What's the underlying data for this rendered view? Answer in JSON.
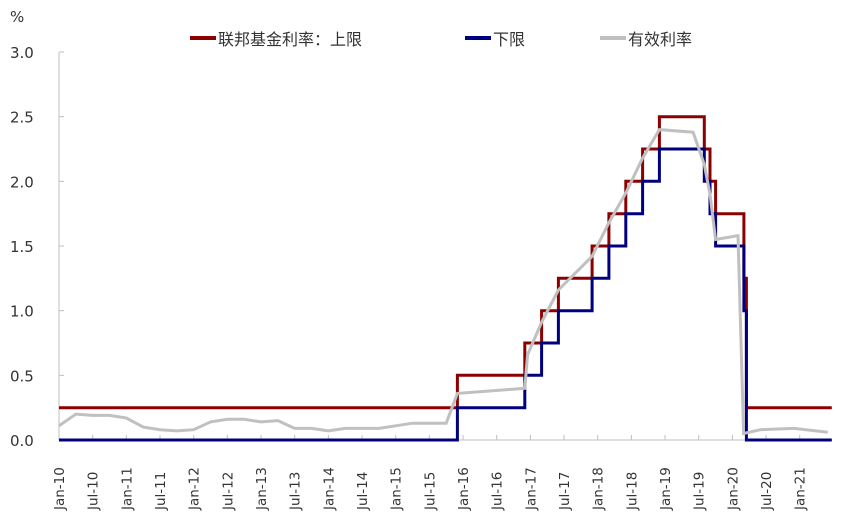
{
  "chart_data": {
    "type": "line",
    "title": "",
    "ylabel": "%",
    "xlabel": "",
    "ylim": [
      0.0,
      3.0
    ],
    "yticks": [
      "0.0",
      "0.5",
      "1.0",
      "1.5",
      "2.0",
      "2.5",
      "3.0"
    ],
    "xticks": [
      "Jan-10",
      "Jul-10",
      "Jan-11",
      "Jul-11",
      "Jan-12",
      "Jul-12",
      "Jan-13",
      "Jul-13",
      "Jan-14",
      "Jul-14",
      "Jan-15",
      "Jul-15",
      "Jan-16",
      "Jul-16",
      "Jan-17",
      "Jul-17",
      "Jan-18",
      "Jul-18",
      "Jan-19",
      "Jul-19",
      "Jan-20",
      "Jul-20",
      "Jan-21"
    ],
    "x_range": [
      "Jan-10",
      "Jun-21"
    ],
    "grid": false,
    "legend_position": "top",
    "series": [
      {
        "name": "联邦基金利率：上限",
        "color": "#8B0000",
        "step": true,
        "points": [
          [
            "2010-01",
            0.25
          ],
          [
            "2015-12",
            0.5
          ],
          [
            "2016-12",
            0.75
          ],
          [
            "2017-03",
            1.0
          ],
          [
            "2017-06",
            1.25
          ],
          [
            "2017-12",
            1.5
          ],
          [
            "2018-03",
            1.75
          ],
          [
            "2018-06",
            2.0
          ],
          [
            "2018-09",
            2.25
          ],
          [
            "2018-12",
            2.5
          ],
          [
            "2019-08",
            2.25
          ],
          [
            "2019-09",
            2.0
          ],
          [
            "2019-10",
            1.75
          ],
          [
            "2020-03a",
            1.25
          ],
          [
            "2020-03b",
            0.25
          ],
          [
            "2021-06",
            0.25
          ]
        ]
      },
      {
        "name": "下限",
        "color": "#00007F",
        "step": true,
        "points": [
          [
            "2010-01",
            0.0
          ],
          [
            "2015-12",
            0.25
          ],
          [
            "2016-12",
            0.5
          ],
          [
            "2017-03",
            0.75
          ],
          [
            "2017-06",
            1.0
          ],
          [
            "2017-12",
            1.25
          ],
          [
            "2018-03",
            1.5
          ],
          [
            "2018-06",
            1.75
          ],
          [
            "2018-09",
            2.0
          ],
          [
            "2018-12",
            2.25
          ],
          [
            "2019-08",
            2.0
          ],
          [
            "2019-09",
            1.75
          ],
          [
            "2019-10",
            1.5
          ],
          [
            "2020-03a",
            1.0
          ],
          [
            "2020-03b",
            0.0
          ],
          [
            "2021-06",
            0.0
          ]
        ]
      },
      {
        "name": "有效利率",
        "color": "#C0C0C0",
        "step": false,
        "points": [
          [
            "2010-01",
            0.11
          ],
          [
            "2010-04",
            0.2
          ],
          [
            "2010-07",
            0.19
          ],
          [
            "2010-10",
            0.19
          ],
          [
            "2011-01",
            0.17
          ],
          [
            "2011-04",
            0.1
          ],
          [
            "2011-07",
            0.08
          ],
          [
            "2011-10",
            0.07
          ],
          [
            "2012-01",
            0.08
          ],
          [
            "2012-04",
            0.14
          ],
          [
            "2012-07",
            0.16
          ],
          [
            "2012-10",
            0.16
          ],
          [
            "2013-01",
            0.14
          ],
          [
            "2013-04",
            0.15
          ],
          [
            "2013-07",
            0.09
          ],
          [
            "2013-10",
            0.09
          ],
          [
            "2014-01",
            0.07
          ],
          [
            "2014-04",
            0.09
          ],
          [
            "2014-07",
            0.09
          ],
          [
            "2014-10",
            0.09
          ],
          [
            "2015-01",
            0.11
          ],
          [
            "2015-04",
            0.13
          ],
          [
            "2015-07",
            0.13
          ],
          [
            "2015-10",
            0.13
          ],
          [
            "2015-12",
            0.36
          ],
          [
            "2016-06",
            0.38
          ],
          [
            "2016-12",
            0.4
          ],
          [
            "2016-12b",
            0.66
          ],
          [
            "2017-03",
            0.91
          ],
          [
            "2017-06",
            1.16
          ],
          [
            "2017-12",
            1.42
          ],
          [
            "2018-03",
            1.68
          ],
          [
            "2018-06",
            1.91
          ],
          [
            "2018-09",
            2.18
          ],
          [
            "2018-12",
            2.4
          ],
          [
            "2019-06",
            2.38
          ],
          [
            "2019-08",
            2.13
          ],
          [
            "2019-09",
            1.9
          ],
          [
            "2019-10",
            1.55
          ],
          [
            "2020-02",
            1.58
          ],
          [
            "2020-03",
            0.05
          ],
          [
            "2020-06",
            0.08
          ],
          [
            "2020-12",
            0.09
          ],
          [
            "2021-06",
            0.06
          ]
        ]
      }
    ]
  },
  "legend": {
    "items": [
      {
        "label": "联邦基金利率：上限",
        "color": "#8B0000"
      },
      {
        "label": "下限",
        "color": "#00007F"
      },
      {
        "label": "有效利率",
        "color": "#C0C0C0"
      }
    ]
  },
  "axis": {
    "unit": "%"
  }
}
